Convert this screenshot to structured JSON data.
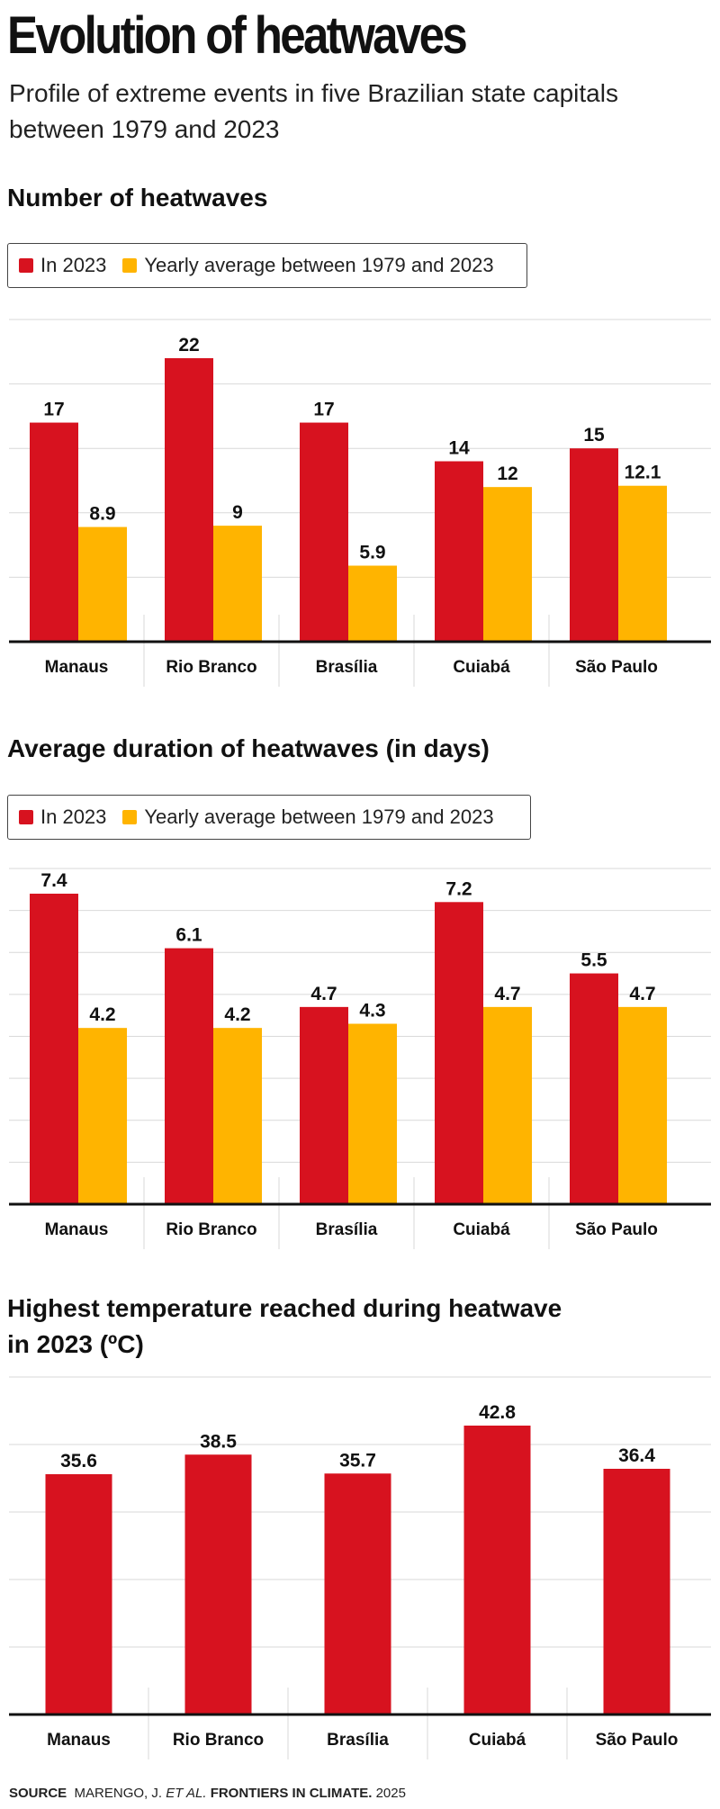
{
  "header": {
    "title": "Evolution of heatwaves",
    "subtitle": "Profile of extreme events in five Brazilian state capitals between 1979 and 2023"
  },
  "colors": {
    "in2023": "#d7121f",
    "average": "#ffb400",
    "grid": "#d9d9d9",
    "axis": "#111111"
  },
  "chart_data": [
    {
      "type": "bar",
      "title": "Number of heatwaves",
      "categories": [
        "Manaus",
        "Rio Branco",
        "Brasília",
        "Cuiabá",
        "São Paulo"
      ],
      "series": [
        {
          "name": "In 2023",
          "values": [
            17,
            22,
            17,
            14,
            15
          ]
        },
        {
          "name": "Yearly average between 1979 and 2023",
          "values": [
            8.9,
            9,
            5.9,
            12,
            12.1
          ]
        }
      ],
      "value_labels": [
        [
          "17",
          "22",
          "17",
          "14",
          "15"
        ],
        [
          "8.9",
          "9",
          "5.9",
          "12",
          "12.1"
        ]
      ],
      "ylim": [
        0,
        25
      ],
      "gridlines": [
        5,
        10,
        15,
        20,
        25
      ],
      "legend": "top-left"
    },
    {
      "type": "bar",
      "title": "Average duration of heatwaves (in days)",
      "categories": [
        "Manaus",
        "Rio Branco",
        "Brasília",
        "Cuiabá",
        "São Paulo"
      ],
      "series": [
        {
          "name": "In 2023",
          "values": [
            7.4,
            6.1,
            4.7,
            7.2,
            5.5
          ]
        },
        {
          "name": "Yearly average between 1979 and 2023",
          "values": [
            4.2,
            4.2,
            4.3,
            4.7,
            4.7
          ]
        }
      ],
      "value_labels": [
        [
          "7.4",
          "6.1",
          "4.7",
          "7.2",
          "5.5"
        ],
        [
          "4.2",
          "4.2",
          "4.3",
          "4.7",
          "4.7"
        ]
      ],
      "ylim": [
        0,
        8
      ],
      "gridlines": [
        1,
        2,
        3,
        4,
        5,
        6,
        7,
        8
      ],
      "legend": "top-left"
    },
    {
      "type": "bar",
      "title": "Highest temperature reached during heatwave in 2023 (ºC)",
      "categories": [
        "Manaus",
        "Rio Branco",
        "Brasília",
        "Cuiabá",
        "São Paulo"
      ],
      "series": [
        {
          "name": "In 2023",
          "values": [
            35.6,
            38.5,
            35.7,
            42.8,
            36.4
          ]
        }
      ],
      "value_labels": [
        [
          "35.6",
          "38.5",
          "35.7",
          "42.8",
          "36.4"
        ]
      ],
      "ylim": [
        0,
        50
      ],
      "gridlines": [
        10,
        20,
        30,
        40,
        50
      ]
    }
  ],
  "source": {
    "label": "SOURCE",
    "authors": "MARENGO, J.",
    "etal": "ET AL.",
    "journal": "FRONTIERS IN CLIMATE.",
    "year": "2025"
  }
}
